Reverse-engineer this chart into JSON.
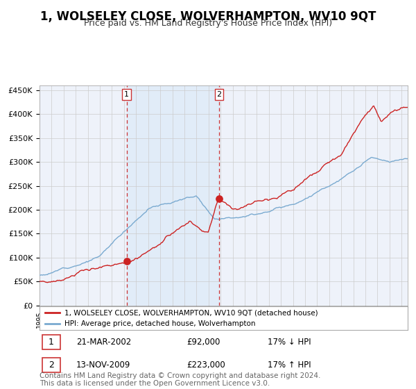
{
  "title": "1, WOLSELEY CLOSE, WOLVERHAMPTON, WV10 9QT",
  "subtitle": "Price paid vs. HM Land Registry's House Price Index (HPI)",
  "legend_line1": "1, WOLSELEY CLOSE, WOLVERHAMPTON, WV10 9QT (detached house)",
  "legend_line2": "HPI: Average price, detached house, Wolverhampton",
  "transaction1_date": "21-MAR-2002",
  "transaction1_price": "£92,000",
  "transaction1_hpi": "17% ↓ HPI",
  "transaction1_year": 2002.22,
  "transaction1_value": 92000,
  "transaction2_date": "13-NOV-2009",
  "transaction2_price": "£223,000",
  "transaction2_hpi": "17% ↑ HPI",
  "transaction2_year": 2009.87,
  "transaction2_value": 223000,
  "ylim": [
    0,
    460000
  ],
  "yticks": [
    0,
    50000,
    100000,
    150000,
    200000,
    250000,
    300000,
    350000,
    400000,
    450000
  ],
  "xmin": 1995.0,
  "xmax": 2025.5,
  "background_color": "#ffffff",
  "plot_bg_color": "#eef2fa",
  "grid_color": "#cccccc",
  "hpi_line_color": "#7aaad0",
  "price_line_color": "#cc2222",
  "highlight_bg_color": "#d8e8f8",
  "vline_color": "#cc3333",
  "title_fontsize": 12,
  "subtitle_fontsize": 9,
  "footnote": "Contains HM Land Registry data © Crown copyright and database right 2024.\nThis data is licensed under the Open Government Licence v3.0.",
  "footnote_fontsize": 7.5
}
